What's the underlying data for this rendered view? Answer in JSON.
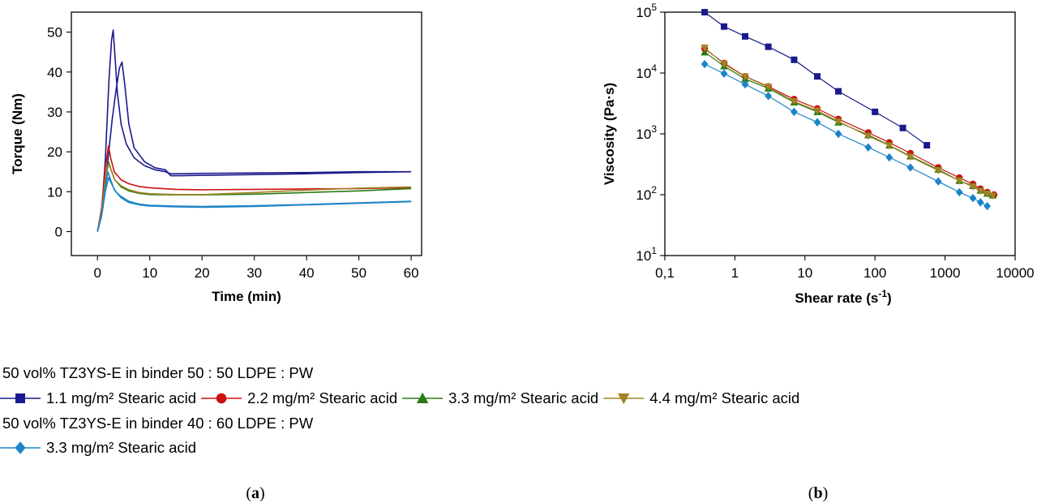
{
  "chart_data": [
    {
      "type": "line",
      "panel_label": "a",
      "xlabel": "Time (min)",
      "ylabel": "Torque (Nm)",
      "xlim": [
        -5,
        62
      ],
      "ylim": [
        -6,
        55
      ],
      "xticks": [
        0,
        10,
        20,
        30,
        40,
        50,
        60
      ],
      "yticks": [
        0,
        10,
        20,
        30,
        40,
        50
      ],
      "xtick_labels": [
        "0",
        "10",
        "20",
        "30",
        "40",
        "50",
        "60"
      ],
      "ytick_labels": [
        "0",
        "10",
        "20",
        "30",
        "40",
        "50"
      ],
      "series": [
        {
          "color": "#1a1a8c",
          "x": [
            0,
            0.8,
            1.5,
            2.2,
            2.7,
            3.0,
            3.3,
            3.8,
            4.5,
            5.5,
            7,
            9,
            11,
            13,
            14,
            16,
            20,
            30,
            40,
            50,
            60
          ],
          "y": [
            0,
            5,
            18,
            38,
            48,
            50.5,
            45,
            35,
            27,
            22,
            18.5,
            16.5,
            15.5,
            15,
            14.5,
            14.5,
            14.6,
            14.7,
            14.8,
            15,
            15
          ]
        },
        {
          "color": "#1a1a8c",
          "x": [
            0,
            1,
            2,
            2.8,
            3.5,
            4.2,
            4.7,
            5.2,
            6,
            7,
            9,
            11,
            13,
            14,
            16,
            20,
            30,
            40,
            50,
            60
          ],
          "y": [
            0,
            6,
            18,
            28,
            35,
            41,
            42.5,
            37,
            27,
            21,
            17.5,
            16,
            15.5,
            14,
            14,
            14.1,
            14.3,
            14.5,
            14.8,
            15
          ]
        },
        {
          "color": "#cc1111",
          "x": [
            0,
            0.8,
            1.5,
            2.1,
            2.5,
            3.2,
            4.5,
            6,
            8,
            10,
            15,
            20,
            30,
            40,
            50,
            60
          ],
          "y": [
            0,
            6,
            16,
            21.5,
            18.5,
            15,
            13,
            12,
            11.3,
            11,
            10.6,
            10.5,
            10.6,
            10.7,
            10.8,
            11
          ]
        },
        {
          "color": "#2a7a15",
          "x": [
            0,
            0.8,
            1.5,
            2.1,
            2.6,
            3.3,
            4.5,
            6,
            8,
            10,
            15,
            20,
            30,
            40,
            50,
            60
          ],
          "y": [
            0,
            5,
            13,
            17.5,
            15.5,
            13,
            11.2,
            10.2,
            9.6,
            9.3,
            9.2,
            9.2,
            9.4,
            9.8,
            10.2,
            10.8
          ]
        },
        {
          "color": "#a38224",
          "x": [
            0,
            0.8,
            1.5,
            2.1,
            2.6,
            3.3,
            4.5,
            6,
            8,
            10,
            15,
            20,
            30,
            40,
            50,
            60
          ],
          "y": [
            0,
            5,
            13,
            17,
            15.5,
            13,
            11.5,
            10.5,
            9.8,
            9.5,
            9.3,
            9.3,
            9.8,
            10.4,
            10.9,
            11.2
          ]
        },
        {
          "color": "#1c84c6",
          "x": [
            0,
            0.8,
            1.5,
            2.0,
            2.5,
            3.2,
            4.5,
            6,
            8,
            10,
            15,
            20,
            30,
            40,
            50,
            60
          ],
          "y": [
            0,
            4,
            11,
            15,
            13,
            10.5,
            8.5,
            7.3,
            6.7,
            6.4,
            6.2,
            6.1,
            6.3,
            6.7,
            7.1,
            7.5
          ]
        },
        {
          "color": "#1c84c6",
          "x": [
            0,
            0.8,
            1.5,
            2.1,
            2.7,
            3.5,
            4.5,
            6,
            8,
            10,
            15,
            20,
            30,
            40,
            50,
            60
          ],
          "y": [
            0,
            4,
            10,
            13.5,
            12,
            10,
            8.8,
            7.6,
            6.9,
            6.6,
            6.4,
            6.3,
            6.5,
            6.8,
            7.2,
            7.6
          ]
        }
      ]
    },
    {
      "type": "line",
      "panel_label": "b",
      "xlabel": "Shear rate (s",
      "xlabel_sup": "-1",
      "xlabel_tail": ")",
      "ylabel": "Viscosity (Pa·s)",
      "xscale": "log",
      "yscale": "log",
      "xlim": [
        0.1,
        10000
      ],
      "ylim": [
        10,
        100000
      ],
      "xticks": [
        0.1,
        1,
        10,
        100,
        1000,
        10000
      ],
      "xtick_labels": [
        "0,1",
        "1",
        "10",
        "100",
        "1000",
        "10000"
      ],
      "yticks": [
        10,
        100,
        1000,
        10000,
        100000
      ],
      "ytick_base": "10",
      "ytick_exponents": [
        "1",
        "2",
        "3",
        "4",
        "5"
      ],
      "series": [
        {
          "color": "#1a1a8c",
          "marker": "square",
          "x": [
            0.37,
            0.7,
            1.4,
            3,
            7,
            15,
            30,
            100,
            250,
            550
          ],
          "y": [
            100000,
            58000,
            40000,
            27000,
            16500,
            8800,
            5000,
            2300,
            1250,
            650
          ]
        },
        {
          "color": "#cc1111",
          "marker": "circle",
          "x": [
            0.37,
            0.7,
            1.4,
            3,
            7,
            15,
            30,
            80,
            160,
            320,
            800,
            1600,
            2500,
            3200,
            4000,
            5000
          ],
          "y": [
            25000,
            14500,
            8800,
            6000,
            3700,
            2600,
            1750,
            1050,
            720,
            480,
            280,
            190,
            150,
            125,
            110,
            100
          ]
        },
        {
          "color": "#2a7a15",
          "marker": "triangle-up",
          "x": [
            0.37,
            0.7,
            1.4,
            3,
            7,
            15,
            30,
            80,
            160,
            320,
            800,
            1600,
            2500,
            3200,
            4000,
            4800
          ],
          "y": [
            22000,
            13000,
            8000,
            5600,
            3300,
            2300,
            1550,
            960,
            650,
            430,
            260,
            170,
            140,
            118,
            105,
            98
          ]
        },
        {
          "color": "#a38224",
          "marker": "triangle-down",
          "x": [
            0.37,
            0.7,
            1.4,
            3,
            7,
            15,
            30,
            80,
            160,
            320,
            800,
            1600,
            2500,
            3200,
            4000,
            4800
          ],
          "y": [
            26000,
            14000,
            8700,
            5900,
            3400,
            2400,
            1600,
            920,
            640,
            420,
            250,
            170,
            135,
            115,
            103,
            96
          ]
        },
        {
          "color": "#1c84c6",
          "marker": "diamond",
          "x": [
            0.37,
            0.7,
            1.4,
            3,
            7,
            15,
            30,
            80,
            160,
            320,
            800,
            1600,
            2500,
            3200,
            4000
          ],
          "y": [
            14000,
            9800,
            6500,
            4200,
            2300,
            1550,
            1000,
            600,
            410,
            280,
            165,
            110,
            88,
            75,
            65
          ]
        }
      ]
    }
  ],
  "legend": {
    "group1_title": "50 vol% TZ3YS-E in binder 50 : 50 LDPE : PW",
    "group1_items": [
      {
        "label": "1.1 mg/m² Stearic acid",
        "color": "#1a1a8c",
        "marker": "square"
      },
      {
        "label": "2.2 mg/m² Stearic acid",
        "color": "#cc1111",
        "marker": "circle"
      },
      {
        "label": "3.3 mg/m² Stearic acid",
        "color": "#2a7a15",
        "marker": "triangle-up"
      },
      {
        "label": "4.4 mg/m² Stearic acid",
        "color": "#a38224",
        "marker": "triangle-down"
      }
    ],
    "group2_title": "50 vol% TZ3YS-E in binder 40 : 60 LDPE : PW",
    "group2_items": [
      {
        "label": "3.3 mg/m² Stearic acid",
        "color": "#1c84c6",
        "marker": "diamond"
      }
    ]
  },
  "captions": {
    "a_open": "(",
    "a": "a",
    "a_close": ")",
    "b_open": "(",
    "b": "b",
    "b_close": ")"
  }
}
